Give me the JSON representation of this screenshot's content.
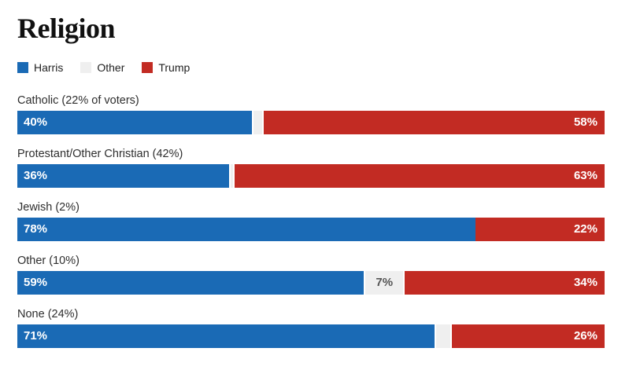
{
  "title": "Religion",
  "colors": {
    "harris": "#1a6ab5",
    "other": "#efefef",
    "trump": "#c22b23",
    "background": "#ffffff"
  },
  "legend": {
    "items": [
      {
        "label": "Harris",
        "color": "#1a6ab5"
      },
      {
        "label": "Other",
        "color": "#efefef"
      },
      {
        "label": "Trump",
        "color": "#c22b23"
      }
    ]
  },
  "chart_data": {
    "type": "bar",
    "orientation": "horizontal",
    "stacked": true,
    "unit": "percent",
    "xlim": [
      0,
      100
    ],
    "grid": false,
    "legend_position": "top",
    "title": "Religion",
    "categories": [
      "Catholic (22% of voters)",
      "Protestant/Other Christian (42%)",
      "Jewish (2%)",
      "Other (10%)",
      "None (24%)"
    ],
    "series": [
      {
        "name": "Harris",
        "color": "#1a6ab5",
        "values": [
          40,
          36,
          78,
          59,
          71
        ]
      },
      {
        "name": "Other",
        "color": "#efefef",
        "values": [
          2,
          1,
          0,
          7,
          3
        ]
      },
      {
        "name": "Trump",
        "color": "#c22b23",
        "values": [
          58,
          63,
          22,
          34,
          26
        ]
      }
    ],
    "rows": [
      {
        "category": "Catholic (22% of voters)",
        "harris": 40,
        "other": 2,
        "trump": 58,
        "harris_label": "40%",
        "other_label": "",
        "trump_label": "58%"
      },
      {
        "category": "Protestant/Other Christian (42%)",
        "harris": 36,
        "other": 1,
        "trump": 63,
        "harris_label": "36%",
        "other_label": "",
        "trump_label": "63%"
      },
      {
        "category": "Jewish (2%)",
        "harris": 78,
        "other": 0,
        "trump": 22,
        "harris_label": "78%",
        "other_label": "",
        "trump_label": "22%"
      },
      {
        "category": "Other (10%)",
        "harris": 59,
        "other": 7,
        "trump": 34,
        "harris_label": "59%",
        "other_label": "7%",
        "trump_label": "34%"
      },
      {
        "category": "None (24%)",
        "harris": 71,
        "other": 3,
        "trump": 26,
        "harris_label": "71%",
        "other_label": "",
        "trump_label": "26%"
      }
    ]
  }
}
